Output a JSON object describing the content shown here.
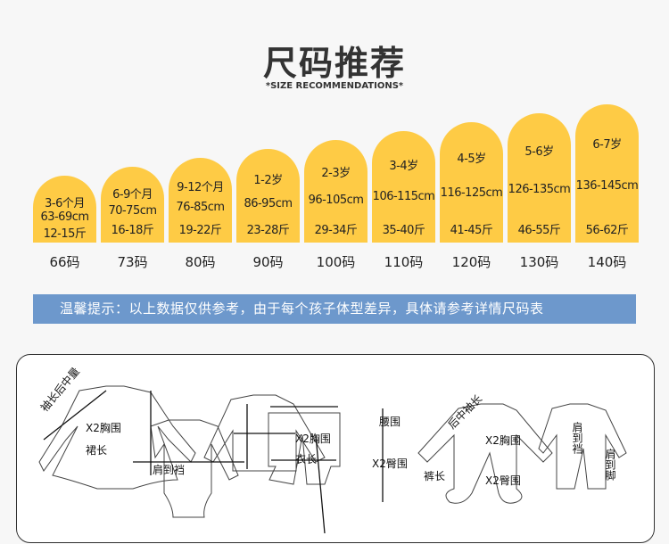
{
  "header": {
    "title": "尺码推荐",
    "subtitle": "*SIZE RECOMMENDATIONS*"
  },
  "sizes": [
    {
      "age": "3-6个月",
      "height": "63-69cm",
      "weight": "12-15斤",
      "size": "66码",
      "bar_level": 1
    },
    {
      "age": "6-9个月",
      "height": "70-75cm",
      "weight": "16-18斤",
      "size": "73码",
      "bar_level": 2
    },
    {
      "age": "9-12个月",
      "height": "76-85cm",
      "weight": "19-22斤",
      "size": "80码",
      "bar_level": 3
    },
    {
      "age": "1-2岁",
      "height": "86-95cm",
      "weight": "23-28斤",
      "size": "90码",
      "bar_level": 4
    },
    {
      "age": "2-3岁",
      "height": "96-105cm",
      "weight": "29-34斤",
      "size": "100码",
      "bar_level": 5
    },
    {
      "age": "3-4岁",
      "height": "106-115cm",
      "weight": "35-40斤",
      "size": "110码",
      "bar_level": 6
    },
    {
      "age": "4-5岁",
      "height": "116-125cm",
      "weight": "41-45斤",
      "size": "120码",
      "bar_level": 7
    },
    {
      "age": "5-6岁",
      "height": "126-135cm",
      "weight": "46-55斤",
      "size": "130码",
      "bar_level": 8
    },
    {
      "age": "6-7岁",
      "height": "136-145cm",
      "weight": "56-62斤",
      "size": "140码",
      "bar_level": 9
    }
  ],
  "notice": "温馨提示：以上数据仅供参考，由于每个孩子体型差异，具体请参考详情尺码表",
  "diagram": {
    "dress": {
      "sleeve": "袖长后中量",
      "chest": "X2胸围",
      "length": "裙长"
    },
    "bodysuit": {
      "length": "肩到裆"
    },
    "top": {
      "chest": "X2胸围",
      "length": "衣长"
    },
    "pants": {
      "waist": "腰围",
      "hip": "X2臀围",
      "length": "裤长"
    },
    "romper": {
      "sleeve": "后中袖长",
      "chest": "X2胸围",
      "hip": "X2臀围"
    },
    "jumpsuit": {
      "crotch": "肩到裆",
      "foot": "肩到脚"
    }
  },
  "colors": {
    "bar": "#fecb45",
    "banner": "#6d98cc",
    "background": "#f7f7f7"
  }
}
